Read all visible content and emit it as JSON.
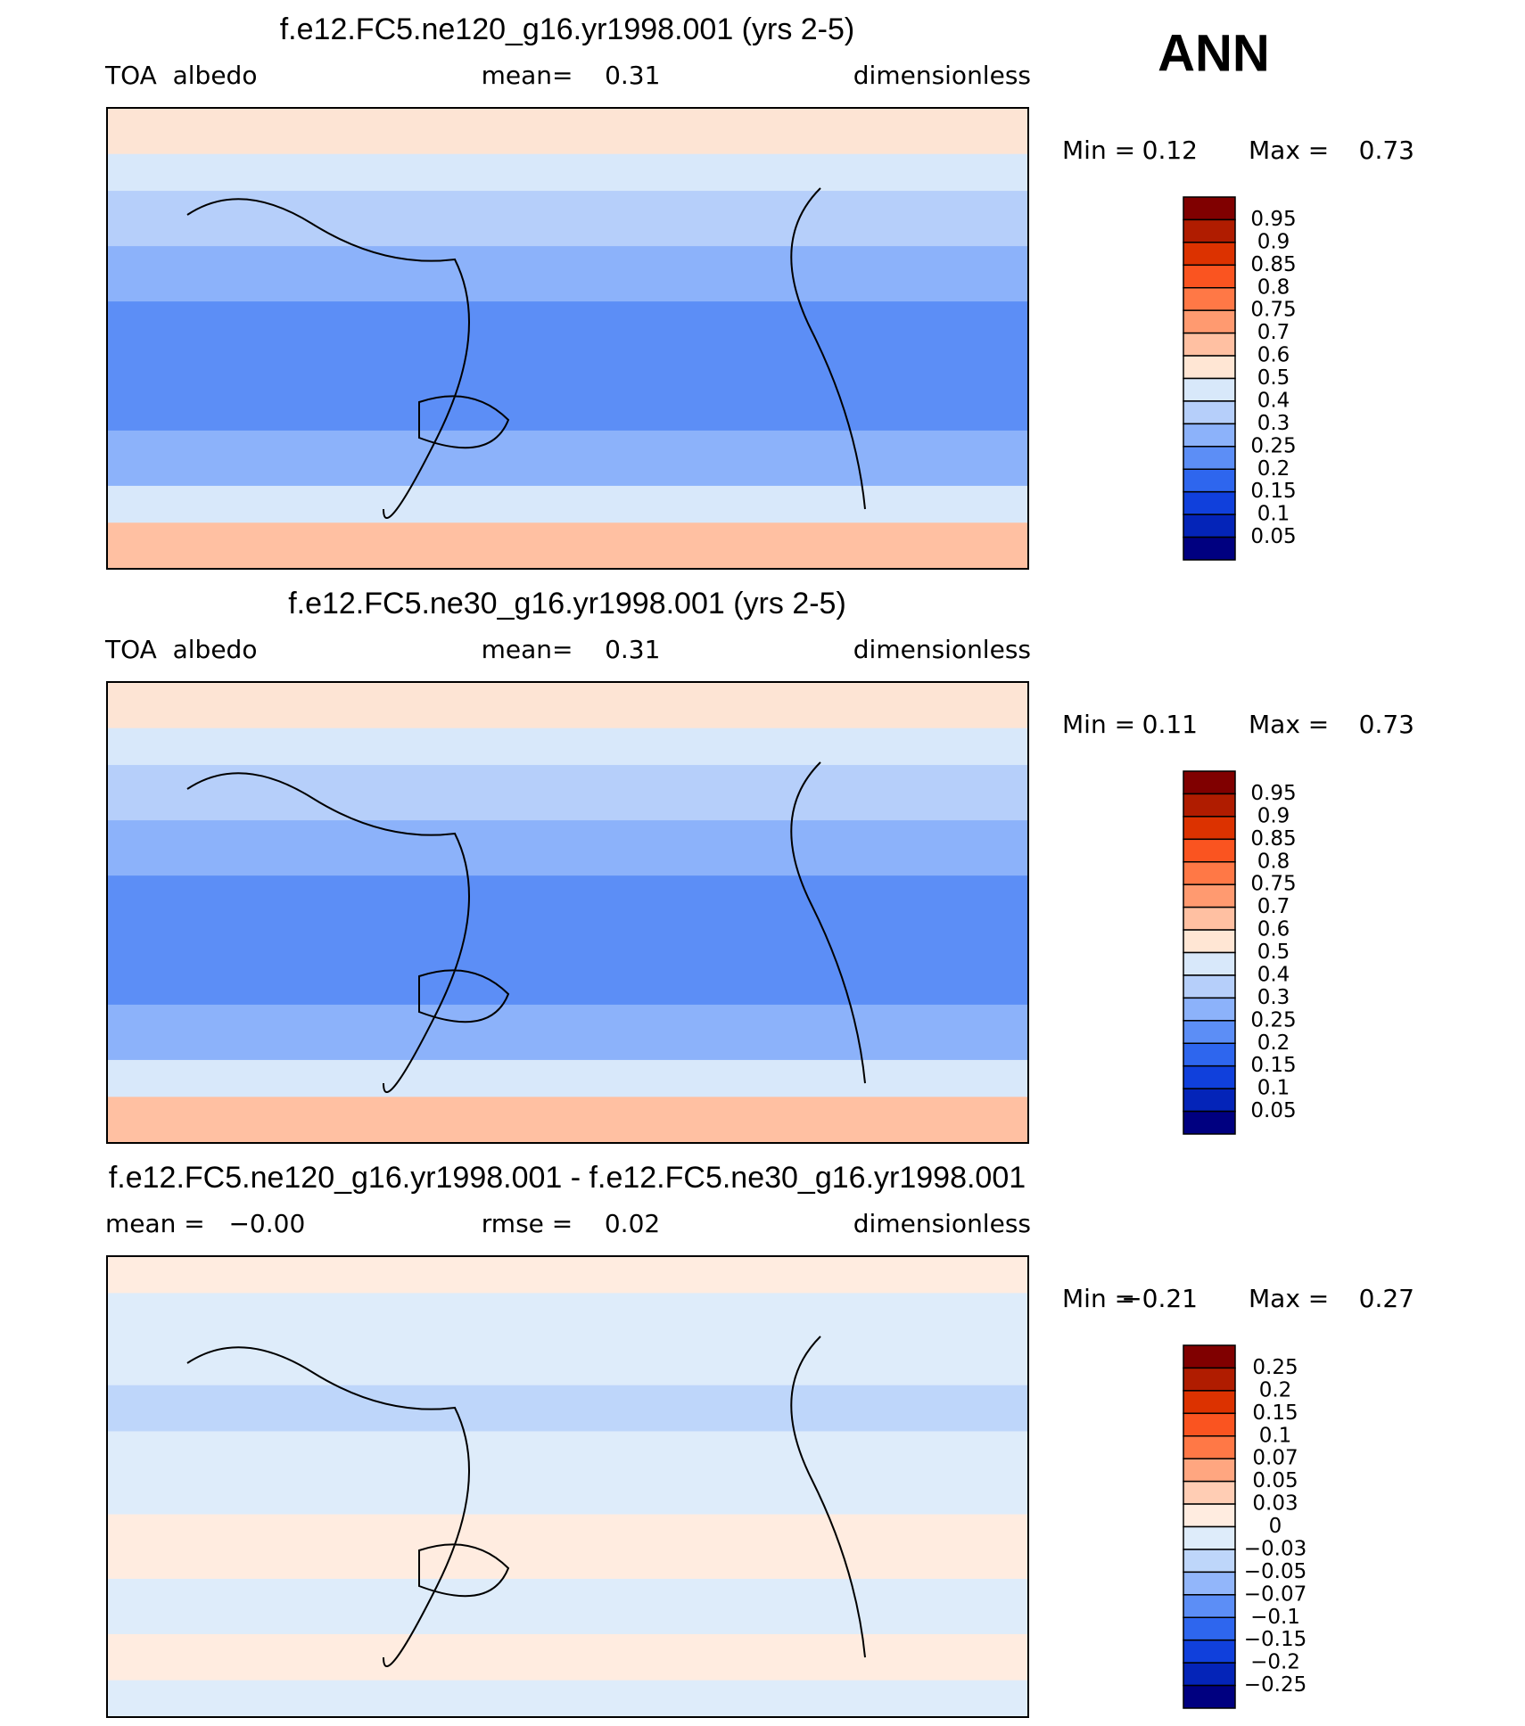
{
  "header": {
    "title": "ANN"
  },
  "panels": [
    {
      "title": "f.e12.FC5.ne120_g16.yr1998.001 (yrs 2-5)",
      "left": "TOA  albedo",
      "center": "mean=    0.31",
      "right": "dimensionless",
      "min_label": "Min =",
      "min": "0.12",
      "max_label": "Max =",
      "max": "0.73",
      "colorbar": {
        "labels": [
          "0.95",
          "0.9",
          "0.85",
          "0.8",
          "0.75",
          "0.7",
          "0.6",
          "0.5",
          "0.4",
          "0.3",
          "0.25",
          "0.2",
          "0.15",
          "0.1",
          "0.05"
        ],
        "colors": [
          "#800000",
          "#b01c00",
          "#dc3200",
          "#fa5420",
          "#ff7846",
          "#ff9a70",
          "#ffc0a2",
          "#ffe6d4",
          "#d8e8fa",
          "#b6cffa",
          "#8cb2fa",
          "#5c8ef6",
          "#2e66ee",
          "#1040dc",
          "#0424b8",
          "#000080"
        ]
      }
    },
    {
      "title": "f.e12.FC5.ne30_g16.yr1998.001 (yrs 2-5)",
      "left": "TOA  albedo",
      "center": "mean=    0.31",
      "right": "dimensionless",
      "min_label": "Min =",
      "min": "0.11",
      "max_label": "Max =",
      "max": "0.73",
      "colorbar": {
        "labels": [
          "0.95",
          "0.9",
          "0.85",
          "0.8",
          "0.75",
          "0.7",
          "0.6",
          "0.5",
          "0.4",
          "0.3",
          "0.25",
          "0.2",
          "0.15",
          "0.1",
          "0.05"
        ],
        "colors": [
          "#800000",
          "#b01c00",
          "#dc3200",
          "#fa5420",
          "#ff7846",
          "#ff9a70",
          "#ffc0a2",
          "#ffe6d4",
          "#d8e8fa",
          "#b6cffa",
          "#8cb2fa",
          "#5c8ef6",
          "#2e66ee",
          "#1040dc",
          "#0424b8",
          "#000080"
        ]
      }
    },
    {
      "title": "f.e12.FC5.ne120_g16.yr1998.001 - f.e12.FC5.ne30_g16.yr1998.001",
      "left": "mean =   −0.00",
      "center": "rmse =    0.02",
      "right": "dimensionless",
      "min_label": "Min =",
      "min": "−0.21",
      "max_label": "Max =",
      "max": "0.27",
      "colorbar": {
        "labels": [
          "0.25",
          "0.2",
          "0.15",
          "0.1",
          "0.07",
          "0.05",
          "0.03",
          "0",
          "−0.03",
          "−0.05",
          "−0.07",
          "−0.1",
          "−0.15",
          "−0.2",
          "−0.25"
        ],
        "colors": [
          "#800000",
          "#b01c00",
          "#dc3200",
          "#fa5420",
          "#ff7846",
          "#ffa680",
          "#ffcdb4",
          "#ffece0",
          "#deecfa",
          "#bed6fa",
          "#92b6fa",
          "#5c8ef6",
          "#2e66ee",
          "#1040dc",
          "#0424b8",
          "#000080"
        ]
      }
    }
  ]
}
